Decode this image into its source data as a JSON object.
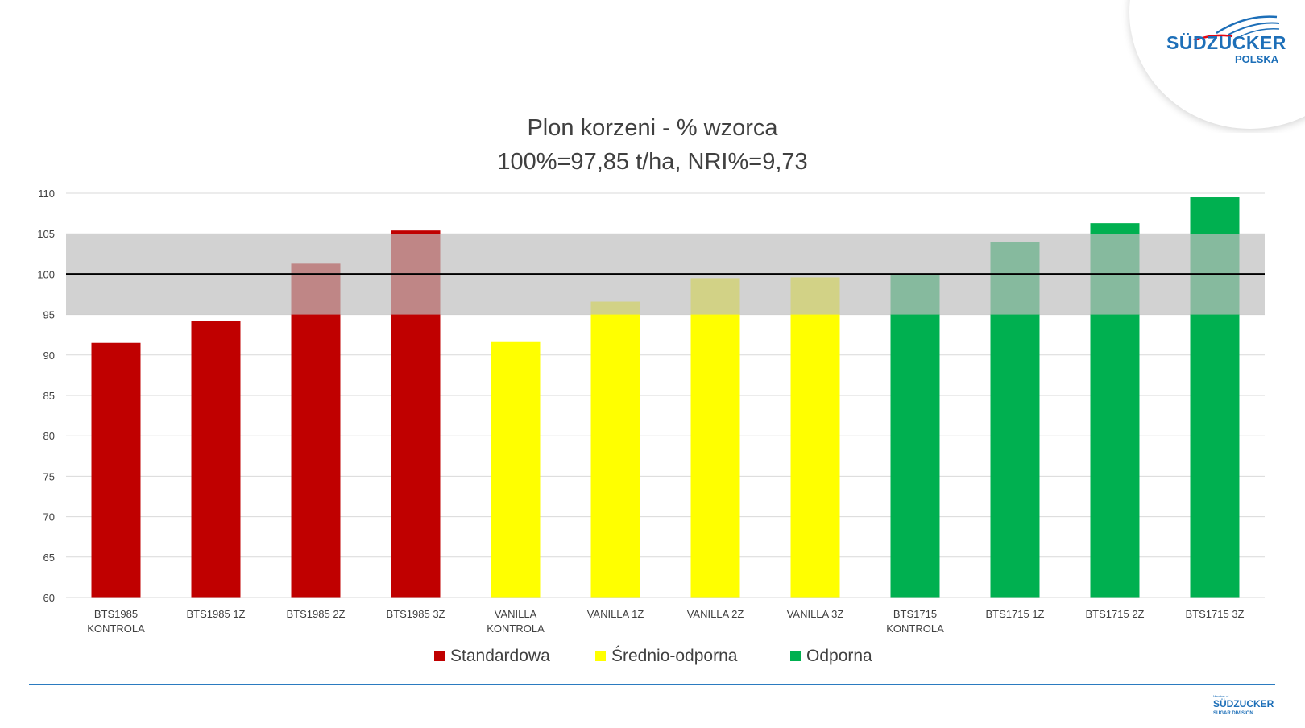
{
  "logo": {
    "brand": "SÜDZUCKER",
    "sub": "POLSKA"
  },
  "footer_logo": {
    "member": "Member of",
    "brand": "SÜDZUCKER",
    "sub": "SUGAR DIVISION"
  },
  "chart_data": {
    "type": "bar",
    "title": "Plon korzeni - % wzorca",
    "subtitle": "100%=97,85 t/ha, NRI%=9,73",
    "xlabel": "",
    "ylabel": "",
    "ylim": [
      60,
      110
    ],
    "yticks": [
      60,
      65,
      70,
      75,
      80,
      85,
      90,
      95,
      100,
      105,
      110
    ],
    "grid": true,
    "legend_position": "bottom",
    "reference_line": 100,
    "reference_band": [
      95,
      105
    ],
    "categories": [
      "BTS1985 KONTROLA",
      "BTS1985 1Z",
      "BTS1985 2Z",
      "BTS1985 3Z",
      "VANILLA KONTROLA",
      "VANILLA 1Z",
      "VANILLA 2Z",
      "VANILLA 3Z",
      "BTS1715 KONTROLA",
      "BTS1715 1Z",
      "BTS1715 2Z",
      "BTS1715 3Z"
    ],
    "category_lines": [
      [
        "BTS1985",
        "KONTROLA"
      ],
      [
        "BTS1985 1Z"
      ],
      [
        "BTS1985 2Z"
      ],
      [
        "BTS1985 3Z"
      ],
      [
        "VANILLA",
        "KONTROLA"
      ],
      [
        "VANILLA 1Z"
      ],
      [
        "VANILLA 2Z"
      ],
      [
        "VANILLA 3Z"
      ],
      [
        "BTS1715",
        "KONTROLA"
      ],
      [
        "BTS1715 1Z"
      ],
      [
        "BTS1715 2Z"
      ],
      [
        "BTS1715 3Z"
      ]
    ],
    "values": [
      91.5,
      94.2,
      101.3,
      105.4,
      91.6,
      96.6,
      99.5,
      99.6,
      100.0,
      104.0,
      106.3,
      109.5
    ],
    "series": [
      {
        "name": "Standardowa",
        "color": "#c00000",
        "indices": [
          0,
          1,
          2,
          3
        ]
      },
      {
        "name": "Średnio-odporna",
        "color": "#ffff00",
        "indices": [
          4,
          5,
          6,
          7
        ]
      },
      {
        "name": "Odporna",
        "color": "#00b050",
        "indices": [
          8,
          9,
          10,
          11
        ]
      }
    ],
    "band_color": "#bfbfbf"
  }
}
